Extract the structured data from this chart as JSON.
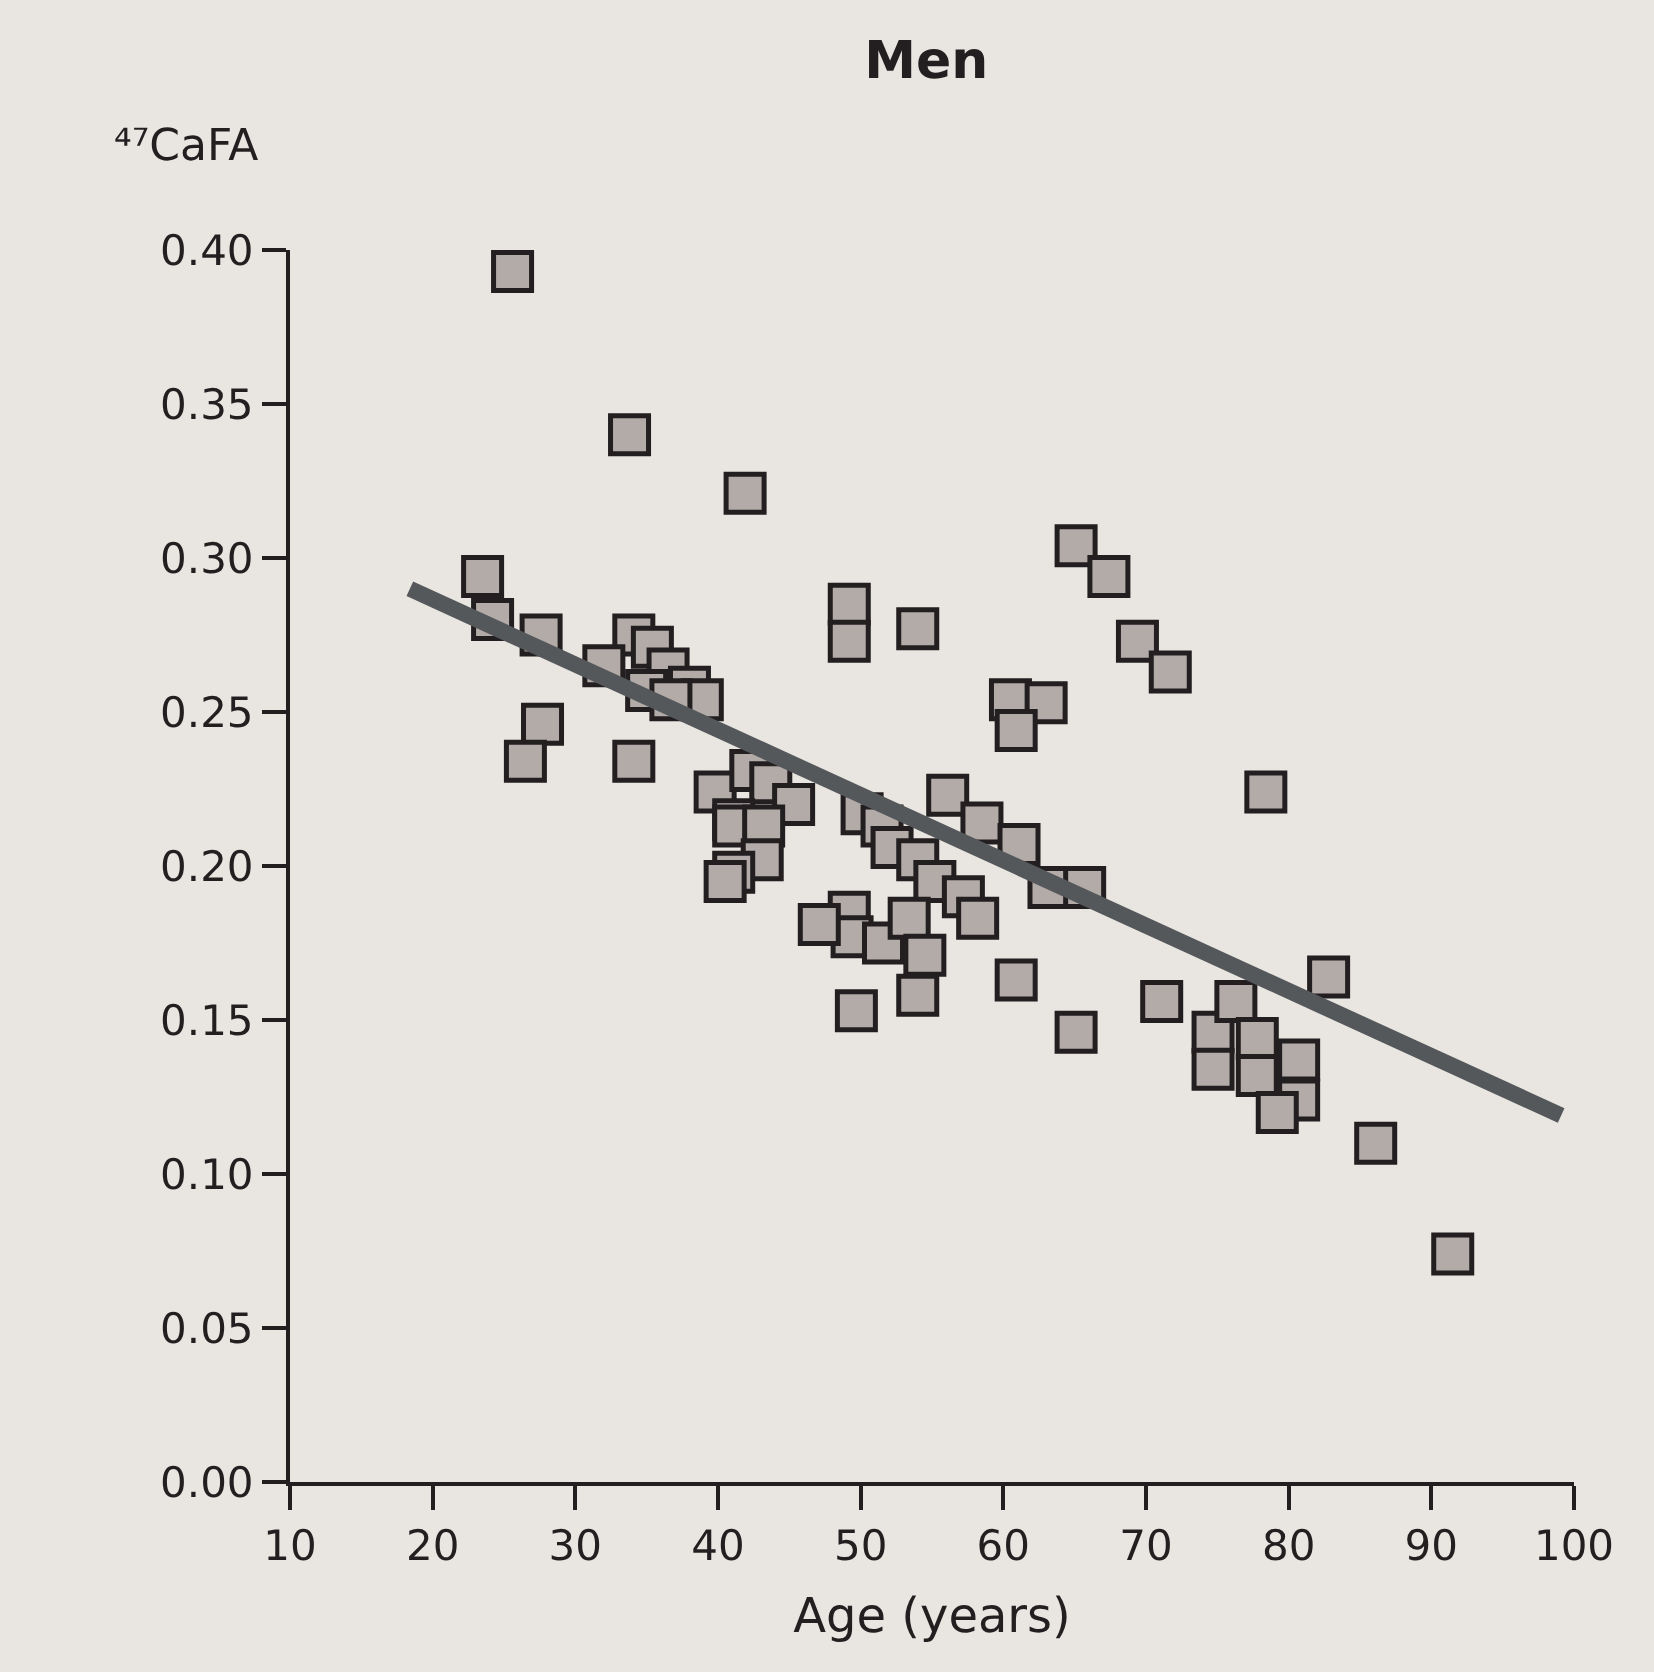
{
  "chart_data": {
    "type": "scatter",
    "title": "Men",
    "xlabel": "Age (years)",
    "ylabel": "⁴⁷CaFA",
    "xlim": [
      10,
      100
    ],
    "ylim": [
      0,
      0.4
    ],
    "xticks": [
      10,
      20,
      30,
      40,
      50,
      60,
      70,
      80,
      90,
      100
    ],
    "yticks": [
      {
        "value": 0,
        "label": "0.00"
      },
      {
        "value": 0.05,
        "label": "0.05"
      },
      {
        "value": 0.1,
        "label": "0.10"
      },
      {
        "value": 0.15,
        "label": "0.15"
      },
      {
        "value": 0.2,
        "label": "0.20"
      },
      {
        "value": 0.25,
        "label": "0.25"
      },
      {
        "value": 0.3,
        "label": "0.30"
      },
      {
        "value": 0.35,
        "label": "0.35"
      },
      {
        "value": 0.4,
        "label": "0.40"
      }
    ],
    "grid": false,
    "marker": "square",
    "series": [
      {
        "color": "#b3aba8",
        "x": [
          25.6,
          33.8,
          41.9,
          23.5,
          24.2,
          27.6,
          34.1,
          35.4,
          32.0,
          36.5,
          38.0,
          35.0,
          38.9,
          36.7,
          27.7,
          26.5,
          34.1,
          49.2,
          49.2,
          54.0,
          56.1,
          39.8,
          42.3,
          43.7,
          45.3,
          50.1,
          41.1,
          41.1,
          43.2,
          43.1,
          41.1,
          40.5,
          51.5,
          52.2,
          54.0,
          58.5,
          61.1,
          55.2,
          57.2,
          58.2,
          63.2,
          65.7,
          49.2,
          49.4,
          47.1,
          51.6,
          53.4,
          54.5,
          54.0,
          49.7,
          60.9,
          65.1,
          71.1,
          65.1,
          67.4,
          69.4,
          71.7,
          60.5,
          63.0,
          60.9,
          78.4,
          74.7,
          76.3,
          74.7,
          77.8,
          77.8,
          80.7,
          80.7,
          79.2,
          82.8,
          86.1,
          91.5
        ],
        "values": [
          0.393,
          0.34,
          0.321,
          0.294,
          0.28,
          0.275,
          0.275,
          0.271,
          0.265,
          0.264,
          0.258,
          0.257,
          0.254,
          0.254,
          0.246,
          0.234,
          0.234,
          0.285,
          0.273,
          0.277,
          0.223,
          0.224,
          0.231,
          0.227,
          0.22,
          0.217,
          0.215,
          0.213,
          0.213,
          0.202,
          0.198,
          0.195,
          0.213,
          0.206,
          0.202,
          0.214,
          0.207,
          0.195,
          0.19,
          0.183,
          0.193,
          0.193,
          0.185,
          0.177,
          0.181,
          0.175,
          0.183,
          0.171,
          0.158,
          0.153,
          0.163,
          0.146,
          0.156,
          0.304,
          0.294,
          0.273,
          0.263,
          0.254,
          0.253,
          0.244,
          0.224,
          0.146,
          0.156,
          0.134,
          0.144,
          0.132,
          0.137,
          0.124,
          0.12,
          0.164,
          0.11,
          0.074
        ]
      },
      {
        "type": "line",
        "color": "#55585b",
        "marker": "none",
        "x": [
          18.4,
          99.1
        ],
        "values": [
          0.29,
          0.119
        ]
      }
    ]
  }
}
